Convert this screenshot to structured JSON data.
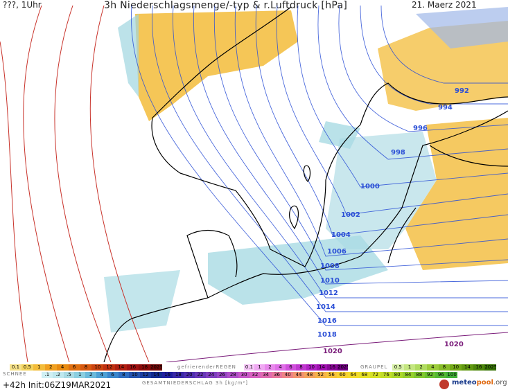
{
  "header": {
    "left": "???, 1Uhr",
    "title": "3h Niederschlagsmenge/-typ & r.Luftdruck [hPa]",
    "date": "21. Maerz 2021"
  },
  "isobar_labels": [
    "992",
    "994",
    "996",
    "998",
    "1000",
    "1002",
    "1004",
    "1006",
    "1008",
    "1010",
    "1012",
    "1014",
    "1016",
    "1018",
    "1020",
    "1020"
  ],
  "legend": {
    "rain_scale": [
      "0.1",
      "0.5",
      "1",
      "2",
      "4",
      "6",
      "8",
      "10",
      "12",
      "14",
      "16",
      "18",
      "2025+"
    ],
    "freezing_label": "gefrierenderREGEN",
    "freezing_scale": [
      "0.1",
      "1",
      "2",
      "4",
      "6",
      "8",
      "10",
      "14",
      "16",
      "2025+"
    ],
    "graupel_label": "GRAUPEL",
    "graupel_scale": [
      "0.5",
      "1",
      "2",
      "4",
      "8",
      "10",
      "14",
      "16",
      "2025+"
    ],
    "snow_label": "SCHNEE",
    "snow_scale": [
      ".1",
      ".2",
      ".5",
      "1",
      "2",
      "4",
      "6",
      "8",
      "10",
      "12",
      "14",
      "16",
      "18",
      "20",
      "22",
      "24",
      "26",
      "28",
      "30",
      "32",
      "34",
      "36",
      "40",
      "44",
      "48",
      "52",
      "56",
      "60",
      "64",
      "68",
      "72",
      "76",
      "80",
      "84",
      "88",
      "92",
      "96",
      "100"
    ],
    "total_label": "GESAMTNIEDERSCHLAG 3h [kg/m²]",
    "colors": {
      "rain": "#f4c430",
      "snow": "#9fd6e0",
      "freezing": "#e070e8",
      "graupel": "#9ccc3a",
      "isobar": "#2b4fd6",
      "isobar_high": "#7a1c7a",
      "isobar_red": "#c8322a"
    }
  },
  "footer": {
    "init": "+42h Init:06Z19MAR2021",
    "logo_a": "meteo",
    "logo_b": "pool",
    "logo_c": ".org"
  }
}
